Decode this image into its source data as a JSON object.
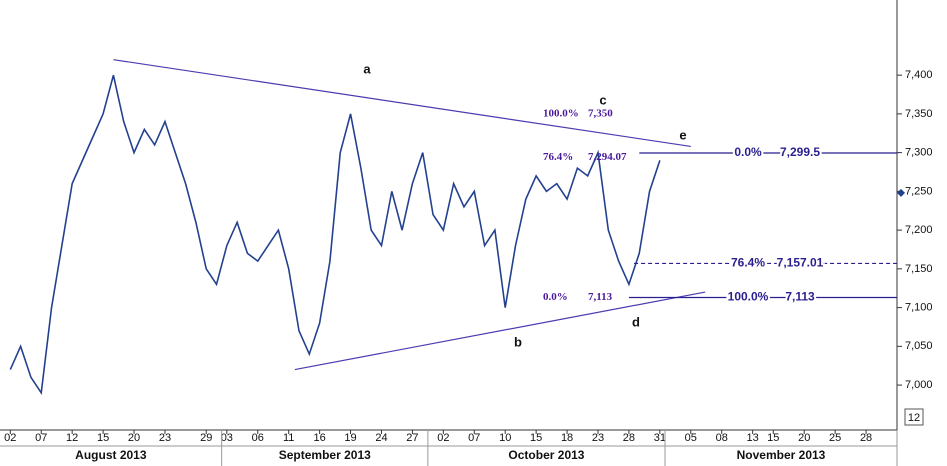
{
  "chart_data": {
    "type": "line",
    "x": [
      0,
      1,
      2,
      3,
      4,
      5,
      6,
      7,
      8,
      9,
      10,
      11,
      12,
      13,
      14,
      15,
      16,
      17,
      18,
      19,
      20,
      21,
      22,
      23,
      24,
      25,
      26,
      27,
      28,
      29,
      30,
      31,
      32,
      33,
      34,
      35,
      36,
      37,
      38,
      39,
      40,
      41,
      42,
      43,
      44,
      45,
      46,
      47,
      48,
      49,
      50,
      51,
      52,
      53,
      54,
      55,
      56,
      57,
      58,
      59,
      60,
      61,
      62,
      63
    ],
    "series": [
      {
        "color": "#23418f",
        "values": [
          7020,
          7050,
          7010,
          6990,
          7100,
          7180,
          7260,
          7290,
          7320,
          7350,
          7400,
          7340,
          7300,
          7330,
          7310,
          7340,
          7300,
          7260,
          7210,
          7150,
          7130,
          7180,
          7210,
          7170,
          7160,
          7180,
          7200,
          7150,
          7070,
          7040,
          7080,
          7160,
          7300,
          7350,
          7280,
          7200,
          7180,
          7250,
          7200,
          7260,
          7300,
          7220,
          7200,
          7260,
          7230,
          7250,
          7180,
          7200,
          7100,
          7180,
          7240,
          7270,
          7250,
          7260,
          7240,
          7280,
          7270,
          7300,
          7200,
          7160,
          7130,
          7170,
          7250,
          7290
        ]
      }
    ],
    "xlim": [
      -1,
      86
    ],
    "ylim": [
      6942,
      7497
    ],
    "yticks": [
      {
        "value": 7000,
        "label": "7,000"
      },
      {
        "value": 7050,
        "label": "7,050"
      },
      {
        "value": 7100,
        "label": "7,100"
      },
      {
        "value": 7150,
        "label": "7,150"
      },
      {
        "value": 7200,
        "label": "7,200"
      },
      {
        "value": 7250,
        "label": "7,250"
      },
      {
        "value": 7300,
        "label": "7,300"
      },
      {
        "value": 7350,
        "label": "7,350"
      },
      {
        "value": 7400,
        "label": "7,400"
      }
    ],
    "xticks": [
      {
        "value": 0,
        "label": "02"
      },
      {
        "value": 3,
        "label": "07"
      },
      {
        "value": 6,
        "label": "12"
      },
      {
        "value": 9,
        "label": "15"
      },
      {
        "value": 12,
        "label": "20"
      },
      {
        "value": 15,
        "label": "23"
      },
      {
        "value": 19,
        "label": "29"
      },
      {
        "value": 21,
        "label": "03"
      },
      {
        "value": 24,
        "label": "06"
      },
      {
        "value": 27,
        "label": "11"
      },
      {
        "value": 30,
        "label": "16"
      },
      {
        "value": 33,
        "label": "19"
      },
      {
        "value": 36,
        "label": "24"
      },
      {
        "value": 39,
        "label": "27"
      },
      {
        "value": 42,
        "label": "02"
      },
      {
        "value": 45,
        "label": "07"
      },
      {
        "value": 48,
        "label": "10"
      },
      {
        "value": 51,
        "label": "15"
      },
      {
        "value": 54,
        "label": "18"
      },
      {
        "value": 57,
        "label": "23"
      },
      {
        "value": 60,
        "label": "28"
      },
      {
        "value": 63,
        "label": "31"
      },
      {
        "value": 66,
        "label": "05"
      },
      {
        "value": 69,
        "label": "08"
      },
      {
        "value": 72,
        "label": "13"
      },
      {
        "value": 74,
        "label": "15"
      },
      {
        "value": 77,
        "label": "20"
      },
      {
        "value": 80,
        "label": "25"
      },
      {
        "value": 83,
        "label": "28"
      }
    ],
    "x_groups": [
      {
        "label": "August 2013",
        "range": [
          -1,
          20.5
        ]
      },
      {
        "label": "September 2013",
        "range": [
          20.5,
          40.5
        ]
      },
      {
        "label": "October 2013",
        "range": [
          40.5,
          63.5
        ]
      },
      {
        "label": "November 2013",
        "range": [
          63.5,
          86
        ]
      }
    ],
    "trendlines": [
      {
        "color": "#4b3bb0",
        "x": [
          10,
          66
        ],
        "y": [
          7420,
          7308
        ]
      },
      {
        "color": "#4b3bb0",
        "x": [
          27.6,
          67.4
        ],
        "y": [
          7020,
          7120
        ]
      }
    ],
    "levels": [
      {
        "label": "0.0%",
        "value_label": "7,299.5",
        "value": 7299.5,
        "x": 61,
        "style": "solid"
      },
      {
        "label": "76.4%",
        "value_label": "7,157.01",
        "value": 7157.01,
        "x": 60.5,
        "style": "dashed"
      },
      {
        "label": "100.0%",
        "value_label": "7,113",
        "value": 7113,
        "x": 60,
        "style": "solid"
      }
    ],
    "fib_notes": [
      {
        "label": "100.0%",
        "value_label": "7,350",
        "value": 7350
      },
      {
        "label": "76.4%",
        "value_label": "7,294.07",
        "value": 7294.07
      },
      {
        "label": "0.0%",
        "value_label": "7,113",
        "value": 7113
      }
    ],
    "wave_labels": [
      "a",
      "b",
      "c",
      "d",
      "e"
    ],
    "last_price": 7248,
    "corner_label": "12"
  }
}
